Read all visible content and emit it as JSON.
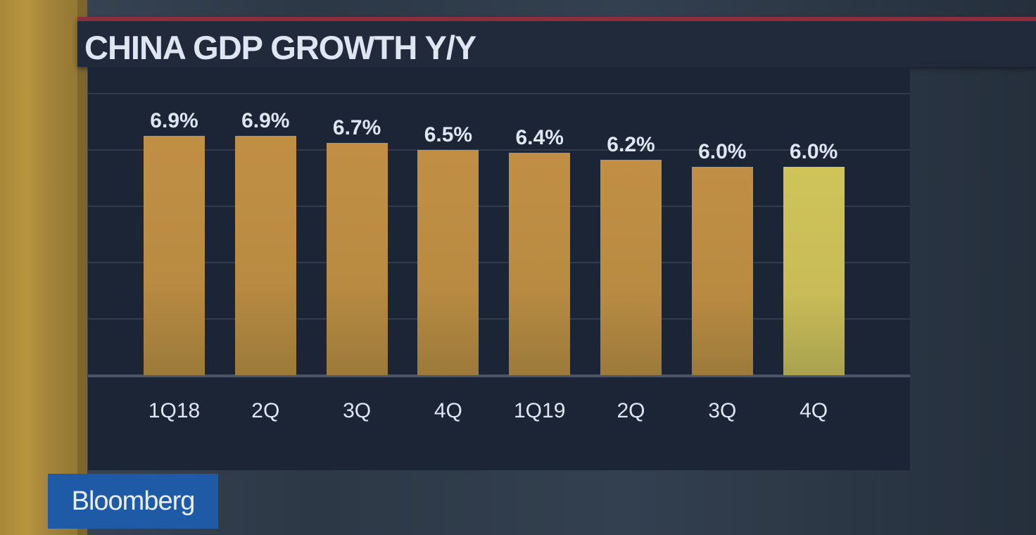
{
  "title": "CHINA GDP GROWTH Y/Y",
  "logo": "Bloomberg",
  "colors": {
    "bar": "#c08f45",
    "highlight": "#cfc35a",
    "panel": "#1b2536",
    "accent_line": "#8c2e3c",
    "logo_bg": "#1f5aa6"
  },
  "chart_data": {
    "type": "bar",
    "title": "CHINA GDP GROWTH Y/Y",
    "categories": [
      "1Q18",
      "2Q",
      "3Q",
      "4Q",
      "1Q19",
      "2Q",
      "3Q",
      "4Q"
    ],
    "values": [
      6.9,
      6.9,
      6.7,
      6.5,
      6.4,
      6.2,
      6.0,
      6.0
    ],
    "labels": [
      "6.9%",
      "6.9%",
      "6.7%",
      "6.5%",
      "6.4%",
      "6.2%",
      "6.0%",
      "6.0%"
    ],
    "highlight_index": 7,
    "unit": "%",
    "ylim": [
      0,
      8
    ],
    "grid": true
  }
}
